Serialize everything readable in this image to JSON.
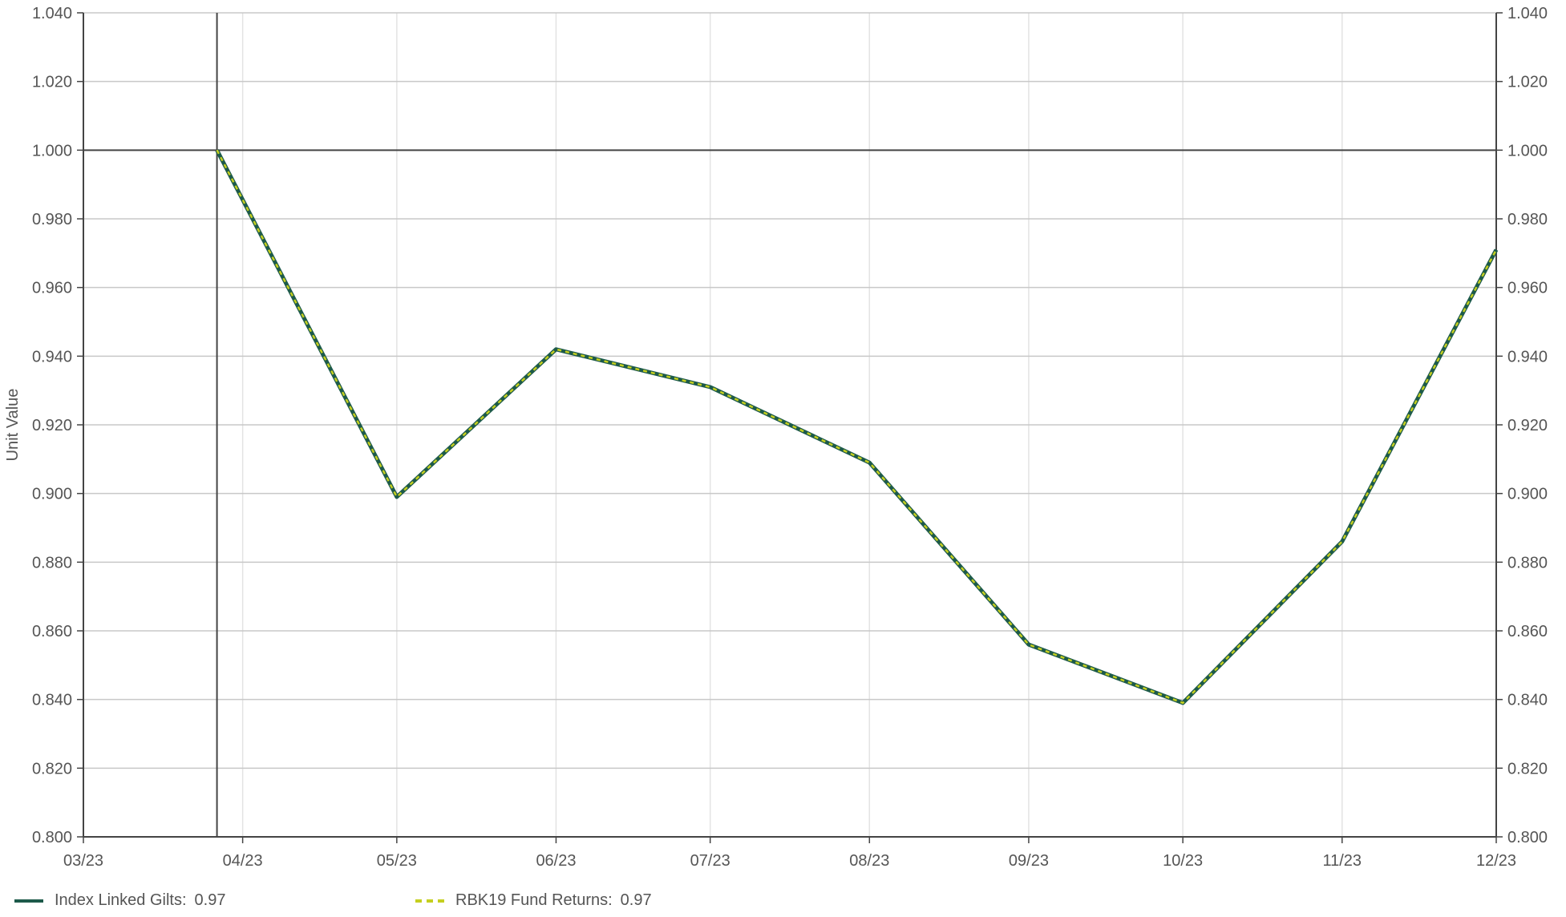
{
  "chart_data": {
    "type": "line",
    "ylabel": "Unit Value",
    "xlabel": "",
    "ylim": [
      0.8,
      1.04
    ],
    "yticks": [
      "0.800",
      "0.820",
      "0.840",
      "0.860",
      "0.880",
      "0.900",
      "0.920",
      "0.940",
      "0.960",
      "0.980",
      "1.000",
      "1.020",
      "1.040"
    ],
    "y_reference_line": 1.0,
    "x_ticks": [
      "03/23",
      "04/23",
      "05/23",
      "06/23",
      "07/23",
      "08/23",
      "09/23",
      "10/23",
      "11/23",
      "12/23"
    ],
    "x_start": "2023-03-01",
    "x_end": "2023-12-01",
    "x_reference_date": "2023-03-27",
    "grid": true,
    "legend_position": "bottom-left",
    "x": [
      "2023-03-27",
      "2023-05-01",
      "2023-06-01",
      "2023-07-01",
      "2023-08-01",
      "2023-09-01",
      "2023-10-01",
      "2023-11-01",
      "2023-12-01"
    ],
    "series": [
      {
        "name": "Index Linked Gilts",
        "legend_value": "0.97",
        "color": "#1d5a4a",
        "style": "solid",
        "values": [
          1.0,
          0.899,
          0.942,
          0.931,
          0.909,
          0.856,
          0.839,
          0.886,
          0.971
        ]
      },
      {
        "name": "RBK19 Fund Returns",
        "legend_value": "0.97",
        "color": "#c5cf1f",
        "style": "dashed",
        "values": [
          1.0,
          0.899,
          0.942,
          0.931,
          0.909,
          0.856,
          0.839,
          0.886,
          0.971
        ]
      }
    ]
  }
}
